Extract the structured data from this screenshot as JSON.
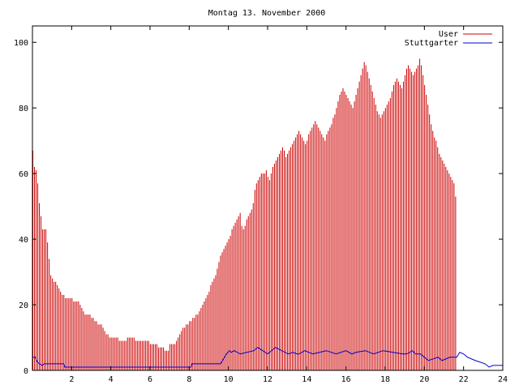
{
  "chart_data": {
    "type": "bar",
    "title": "Montag 13. November 2000",
    "xlim": [
      0,
      24
    ],
    "ylim": [
      0,
      105
    ],
    "x_ticks": [
      2,
      4,
      6,
      8,
      10,
      12,
      14,
      16,
      18,
      20,
      22,
      24
    ],
    "y_ticks": [
      0,
      20,
      40,
      60,
      80,
      100
    ],
    "legend_position": "top-right",
    "grid": false,
    "series": [
      {
        "name": "User",
        "type": "bar",
        "color": "#cc0000",
        "x_step_hours": 0.0833,
        "values": [
          67,
          62,
          61,
          57,
          51,
          47,
          43,
          43,
          43,
          39,
          34,
          29,
          28,
          27,
          27,
          26,
          25,
          24,
          23,
          23,
          22,
          22,
          22,
          22,
          22,
          21,
          21,
          21,
          21,
          20,
          19,
          18,
          17,
          17,
          17,
          17,
          16,
          16,
          15,
          15,
          14,
          14,
          14,
          13,
          12,
          11,
          11,
          10,
          10,
          10,
          10,
          10,
          10,
          9,
          9,
          9,
          9,
          9,
          10,
          10,
          10,
          10,
          10,
          9,
          9,
          9,
          9,
          9,
          9,
          9,
          9,
          9,
          8,
          8,
          8,
          8,
          8,
          7,
          7,
          7,
          7,
          6,
          6,
          6,
          8,
          8,
          8,
          8,
          9,
          10,
          11,
          12,
          13,
          13,
          14,
          14,
          15,
          15,
          16,
          16,
          17,
          17,
          18,
          19,
          20,
          21,
          22,
          23,
          24,
          26,
          27,
          28,
          29,
          31,
          33,
          35,
          36,
          37,
          38,
          39,
          40,
          41,
          43,
          44,
          45,
          46,
          47,
          48,
          44,
          43,
          44,
          46,
          47,
          48,
          49,
          51,
          55,
          57,
          58,
          59,
          60,
          60,
          60,
          61,
          59,
          58,
          60,
          62,
          63,
          64,
          65,
          66,
          67,
          68,
          67,
          65,
          66,
          67,
          68,
          69,
          70,
          71,
          72,
          73,
          72,
          71,
          70,
          69,
          70,
          72,
          73,
          74,
          75,
          76,
          75,
          74,
          73,
          72,
          71,
          70,
          72,
          73,
          74,
          75,
          77,
          78,
          80,
          82,
          84,
          85,
          86,
          85,
          84,
          83,
          82,
          81,
          80,
          82,
          84,
          86,
          88,
          90,
          92,
          94,
          93,
          91,
          89,
          87,
          85,
          83,
          81,
          79,
          78,
          77,
          78,
          79,
          80,
          81,
          82,
          83,
          85,
          87,
          88,
          89,
          88,
          87,
          86,
          88,
          90,
          92,
          93,
          92,
          91,
          90,
          91,
          92,
          93,
          95,
          93,
          90,
          87,
          84,
          81,
          78,
          75,
          73,
          71,
          70,
          68,
          66,
          65,
          64,
          63,
          62,
          61,
          60,
          59,
          58,
          57,
          53
        ]
      },
      {
        "name": "Stuttgarter",
        "type": "step-line",
        "color": "#0000cc",
        "points": [
          [
            0,
            4
          ],
          [
            0.15,
            4
          ],
          [
            0.2,
            3
          ],
          [
            0.35,
            2
          ],
          [
            0.5,
            1.5
          ],
          [
            0.6,
            2
          ],
          [
            1.6,
            2
          ],
          [
            1.65,
            1
          ],
          [
            8.1,
            1
          ],
          [
            8.15,
            2
          ],
          [
            9.6,
            2
          ],
          [
            9.8,
            4
          ],
          [
            9.9,
            5
          ],
          [
            10.05,
            6
          ],
          [
            10.15,
            5.5
          ],
          [
            10.3,
            6
          ],
          [
            10.6,
            5
          ],
          [
            11.3,
            6
          ],
          [
            11.5,
            7
          ],
          [
            12.0,
            5
          ],
          [
            12.4,
            7
          ],
          [
            13.05,
            5
          ],
          [
            13.3,
            5.5
          ],
          [
            13.5,
            5
          ],
          [
            13.6,
            5
          ],
          [
            13.9,
            6
          ],
          [
            14.3,
            5
          ],
          [
            15.0,
            6
          ],
          [
            15.5,
            5
          ],
          [
            16.0,
            6
          ],
          [
            16.3,
            5
          ],
          [
            16.5,
            5.5
          ],
          [
            17.0,
            6
          ],
          [
            17.4,
            5
          ],
          [
            17.9,
            6
          ],
          [
            18.9,
            5
          ],
          [
            19.1,
            5
          ],
          [
            19.4,
            6
          ],
          [
            19.55,
            5
          ],
          [
            19.8,
            5
          ],
          [
            20.0,
            4
          ],
          [
            20.2,
            3
          ],
          [
            20.7,
            4
          ],
          [
            20.9,
            3
          ],
          [
            21.3,
            4
          ],
          [
            21.65,
            4
          ],
          [
            21.8,
            5.5
          ],
          [
            22.0,
            5
          ],
          [
            22.2,
            4
          ],
          [
            22.6,
            3
          ],
          [
            23.1,
            2
          ],
          [
            23.3,
            1
          ],
          [
            23.5,
            1.5
          ],
          [
            24,
            1.5
          ]
        ]
      }
    ]
  }
}
